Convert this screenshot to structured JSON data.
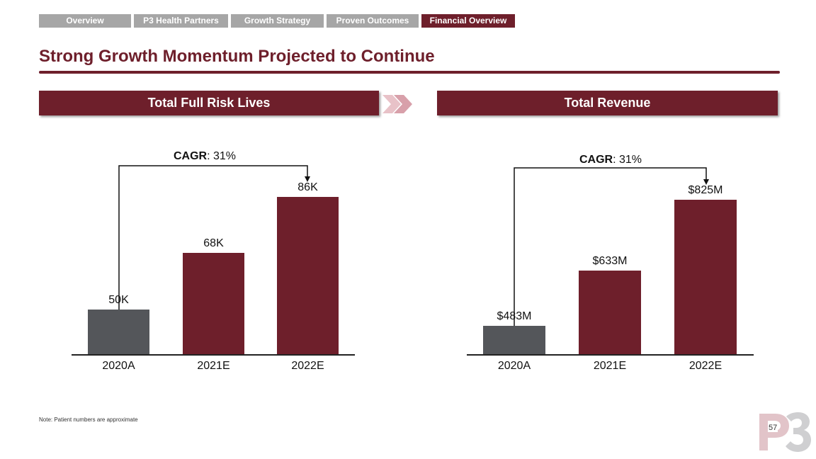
{
  "nav": {
    "tabs": [
      {
        "label": "Overview",
        "active": false
      },
      {
        "label": "P3 Health Partners",
        "active": false
      },
      {
        "label": "Growth Strategy",
        "active": false
      },
      {
        "label": "Proven Outcomes",
        "active": false
      },
      {
        "label": "Financial Overview",
        "active": true
      }
    ]
  },
  "title": "Strong Growth Momentum Projected to Continue",
  "colors": {
    "brand": "#6e1f2b",
    "actual": "#54565a",
    "tab_inactive": "#a6a6a6"
  },
  "chart_data": [
    {
      "type": "bar",
      "title": "Total Full Risk Lives",
      "categories": [
        "2020A",
        "2021E",
        "2022E"
      ],
      "values": [
        50,
        68,
        86
      ],
      "labels": [
        "50K",
        "68K",
        "86K"
      ],
      "ylim": [
        35.7,
        86
      ],
      "cagr_label": "CAGR",
      "cagr_value": ": 31%"
    },
    {
      "type": "bar",
      "title": "Total Revenue",
      "categories": [
        "2020A",
        "2021E",
        "2022E"
      ],
      "values": [
        483,
        633,
        825
      ],
      "labels": [
        "$483M",
        "$633M",
        "$825M"
      ],
      "ylim": [
        406,
        825
      ],
      "cagr_label": "CAGR",
      "cagr_value": ": 31%"
    }
  ],
  "note": "Note: Patient numbers are approximate",
  "page_number": "57",
  "logo": "P3"
}
